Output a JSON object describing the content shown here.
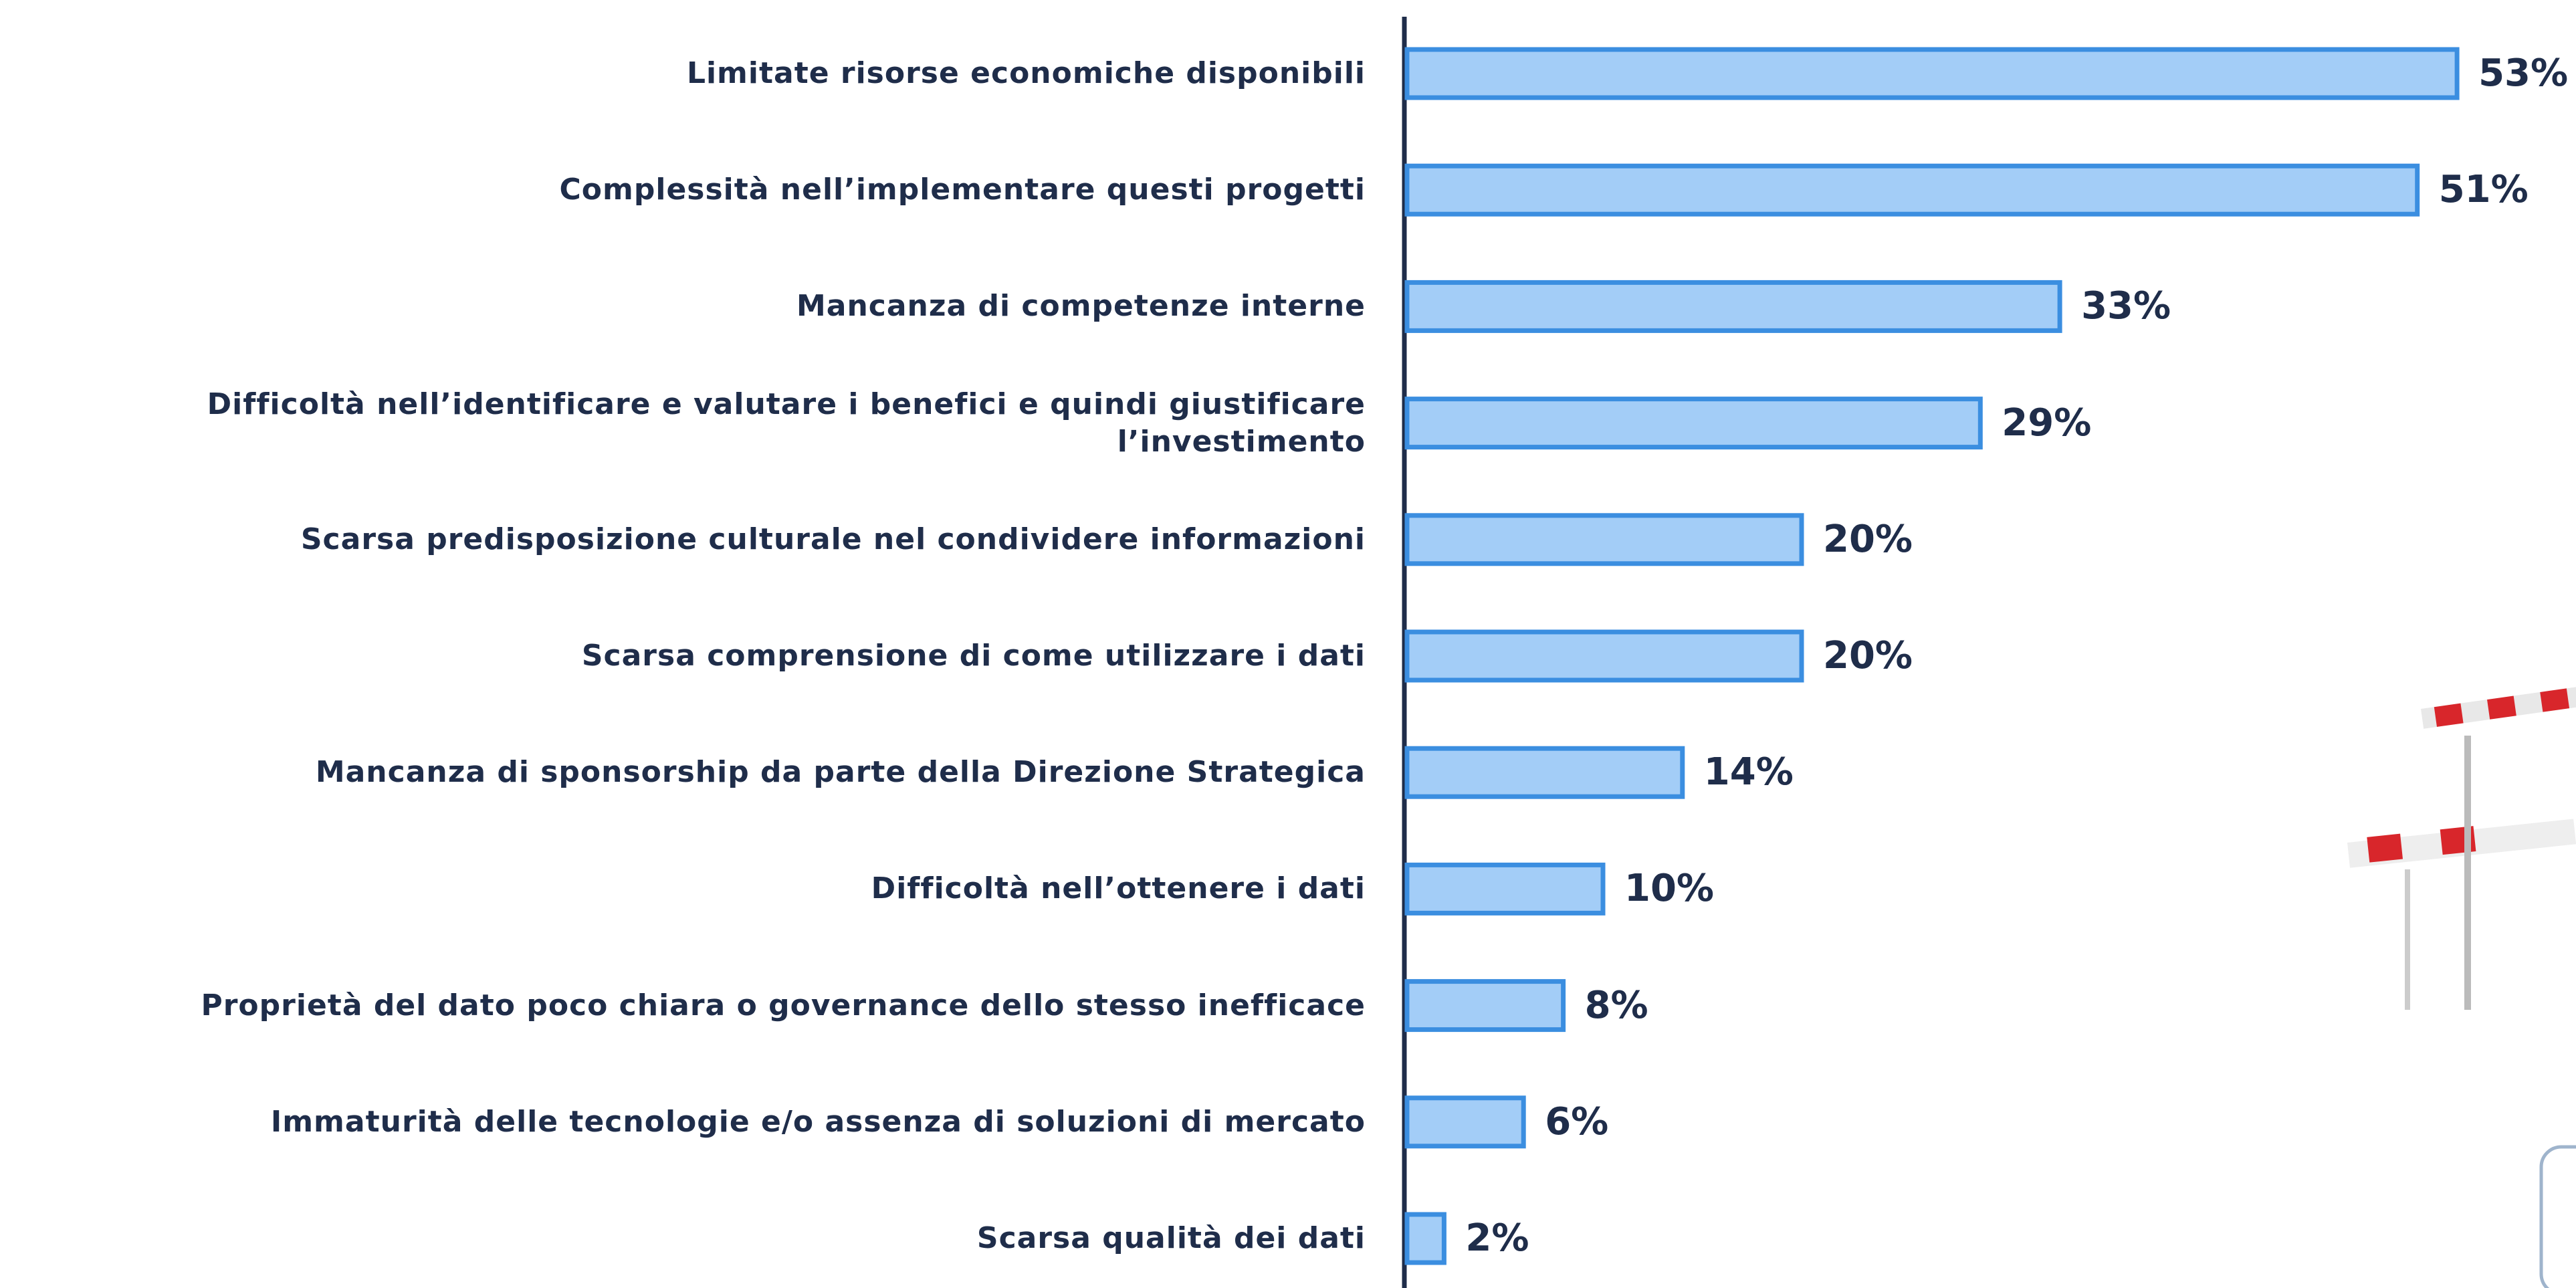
{
  "chart_data": {
    "type": "bar",
    "orientation": "horizontal",
    "categories": [
      "Limitate risorse economiche disponibili",
      "Complessità nell’implementare  questi progetti",
      "Mancanza di competenze interne",
      "Difficoltà nell’identificare e valutare i benefici e quindi giustificare l’investimento",
      "Scarsa predisposizione culturale nel condividere informazioni",
      "Scarsa comprensione di come utilizzare i dati",
      "Mancanza di sponsorship da parte della Direzione Strategica",
      "Difficoltà nell’ottenere  i dati",
      "Proprietà del dato poco chiara o governance dello stesso inefficace",
      "Immaturità delle tecnologie e/o assenza di soluzioni di mercato",
      "Scarsa qualità dei dati"
    ],
    "values": [
      53,
      51,
      33,
      29,
      20,
      20,
      14,
      10,
      8,
      6,
      2
    ],
    "value_labels": [
      "53%",
      "51%",
      "33%",
      "29%",
      "20%",
      "20%",
      "14%",
      "10%",
      "8%",
      "6%",
      "2%"
    ],
    "color": "#a3cdf7",
    "edge_color": "#3b8ee0"
  }
}
